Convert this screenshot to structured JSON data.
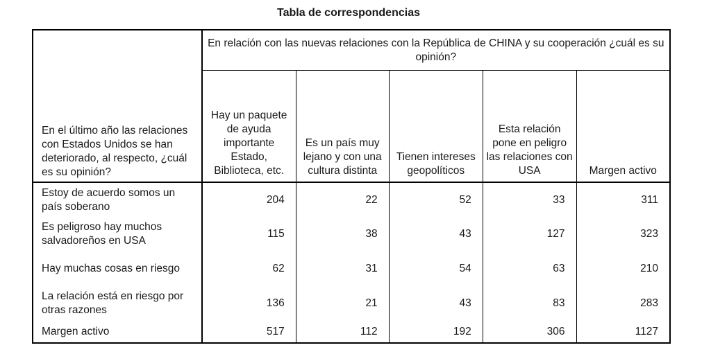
{
  "title": "Tabla de correspondencias",
  "table": {
    "row_header": "En el último año las relaciones con Estados Unidos se han deteriorado, al respecto, ¿cuál es su opinión?",
    "column_group_header": "En relación con las nuevas relaciones con la República de CHINA y su cooperación ¿cuál es su opinión?",
    "columns": [
      "Hay un paquete de ayuda importante Estado, Biblioteca, etc.",
      "Es un país muy lejano y con una cultura distinta",
      "Tienen intereses geopolíticos",
      "Esta relación pone en peligro las relaciones con USA",
      "Margen activo"
    ],
    "rows": [
      {
        "label": "Estoy de acuerdo somos un país soberano",
        "values": [
          "204",
          "22",
          "52",
          "33",
          "311"
        ]
      },
      {
        "label": "Es peligroso hay muchos salvadoreños en USA",
        "values": [
          "115",
          "38",
          "43",
          "127",
          "323"
        ]
      },
      {
        "label": "Hay muchas cosas en riesgo",
        "values": [
          "62",
          "31",
          "54",
          "63",
          "210"
        ]
      },
      {
        "label": "La relación está en riesgo por otras razones",
        "values": [
          "136",
          "21",
          "43",
          "83",
          "283"
        ]
      },
      {
        "label": "Margen activo",
        "values": [
          "517",
          "112",
          "192",
          "306",
          "1127"
        ]
      }
    ]
  }
}
